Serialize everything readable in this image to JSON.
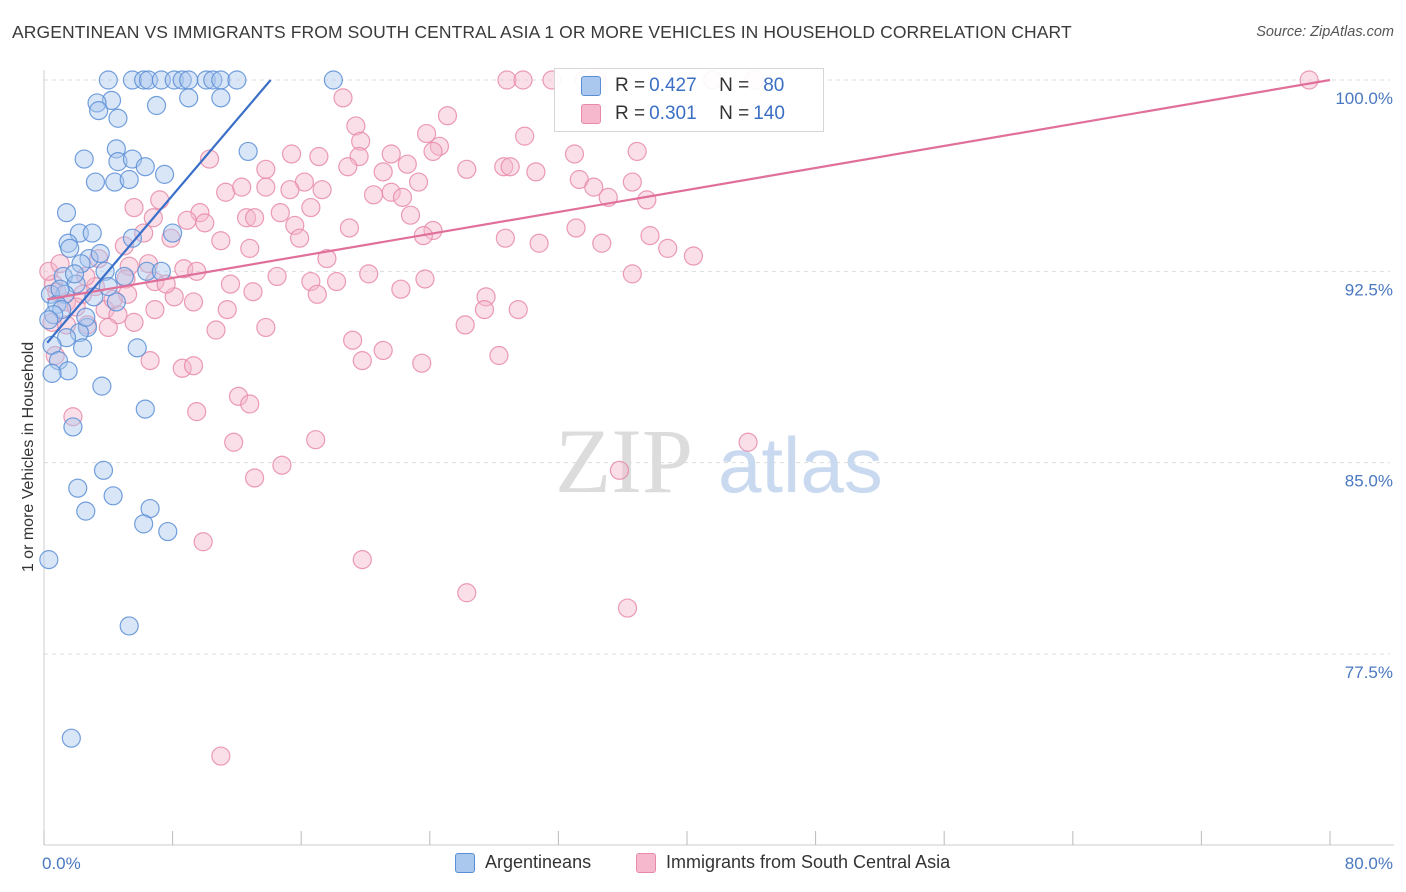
{
  "title": "ARGENTINEAN VS IMMIGRANTS FROM SOUTH CENTRAL ASIA 1 OR MORE VEHICLES IN HOUSEHOLD CORRELATION CHART",
  "source": "Source: ZipAtlas.com",
  "watermark": {
    "zip": "ZIP",
    "atlas": "atlas"
  },
  "colors": {
    "blue_fill": "#aac8ee",
    "blue_stroke": "#5b8ed6",
    "blue_line": "#3a6fc8",
    "pink_fill": "#f5b8cc",
    "pink_stroke": "#e88aa8",
    "pink_line": "#e0709a",
    "grid": "#dddddd",
    "tick_label": "#4a78c0"
  },
  "legend": {
    "rows": [
      {
        "r_label": "R = ",
        "r_value": "0.427",
        "n_label": "N = ",
        "n_value": "80"
      },
      {
        "r_label": "R = ",
        "r_value": "0.301",
        "n_label": "N = ",
        "n_value": "140"
      }
    ]
  },
  "chart_data": {
    "type": "scatter",
    "title": "ARGENTINEAN VS IMMIGRANTS FROM SOUTH CENTRAL ASIA 1 OR MORE VEHICLES IN HOUSEHOLD CORRELATION CHART",
    "xlabel": "",
    "ylabel": "1 or more Vehicles in Household",
    "xlim": [
      0,
      80
    ],
    "ylim": [
      71.5,
      101.5
    ],
    "x_tick_labels": [
      "0.0%",
      "80.0%"
    ],
    "y_ticks": [
      77.5,
      85.0,
      92.5,
      100.0
    ],
    "y_tick_labels": [
      "77.5%",
      "85.0%",
      "92.5%",
      "100.0%"
    ],
    "grid": true,
    "legend_position": "top-center",
    "series": [
      {
        "name": "Argentineans",
        "r": 0.427,
        "n": 80,
        "trend": {
          "x": [
            0.2,
            14.1
          ],
          "y": [
            89.7,
            100.0
          ]
        },
        "points": [
          [
            4.0,
            100.0
          ],
          [
            5.5,
            100.0
          ],
          [
            6.2,
            100.0
          ],
          [
            6.5,
            100.0
          ],
          [
            7.3,
            100.0
          ],
          [
            8.1,
            100.0
          ],
          [
            8.6,
            100.0
          ],
          [
            9.0,
            100.0
          ],
          [
            10.1,
            100.0
          ],
          [
            10.5,
            100.0
          ],
          [
            11.0,
            100.0
          ],
          [
            12.0,
            100.0
          ],
          [
            18.0,
            100.0
          ],
          [
            4.2,
            99.2
          ],
          [
            9.0,
            99.3
          ],
          [
            3.3,
            99.1
          ],
          [
            3.4,
            98.8
          ],
          [
            7.0,
            99.0
          ],
          [
            4.6,
            98.5
          ],
          [
            11.0,
            99.3
          ],
          [
            4.5,
            97.3
          ],
          [
            2.5,
            96.9
          ],
          [
            4.6,
            96.8
          ],
          [
            5.5,
            96.9
          ],
          [
            6.3,
            96.6
          ],
          [
            7.5,
            96.3
          ],
          [
            12.7,
            97.2
          ],
          [
            3.2,
            96.0
          ],
          [
            4.4,
            96.0
          ],
          [
            5.3,
            96.1
          ],
          [
            1.4,
            94.8
          ],
          [
            2.2,
            94.0
          ],
          [
            3.0,
            94.0
          ],
          [
            8.0,
            94.0
          ],
          [
            5.5,
            93.8
          ],
          [
            1.5,
            93.6
          ],
          [
            1.6,
            93.4
          ],
          [
            2.8,
            93.0
          ],
          [
            3.8,
            92.5
          ],
          [
            5.0,
            92.3
          ],
          [
            6.4,
            92.5
          ],
          [
            7.3,
            92.5
          ],
          [
            1.2,
            92.3
          ],
          [
            2.0,
            92.0
          ],
          [
            1.3,
            91.6
          ],
          [
            3.1,
            91.5
          ],
          [
            4.5,
            91.3
          ],
          [
            0.4,
            91.6
          ],
          [
            0.8,
            91.2
          ],
          [
            1.1,
            91.0
          ],
          [
            0.6,
            90.8
          ],
          [
            0.3,
            90.6
          ],
          [
            2.7,
            90.3
          ],
          [
            2.2,
            90.1
          ],
          [
            1.4,
            89.9
          ],
          [
            0.5,
            89.6
          ],
          [
            2.4,
            89.5
          ],
          [
            5.8,
            89.5
          ],
          [
            0.9,
            89.0
          ],
          [
            1.5,
            88.6
          ],
          [
            0.5,
            88.5
          ],
          [
            3.6,
            88.0
          ],
          [
            6.3,
            87.1
          ],
          [
            1.8,
            86.4
          ],
          [
            3.7,
            84.7
          ],
          [
            2.1,
            84.0
          ],
          [
            4.3,
            83.7
          ],
          [
            2.6,
            83.1
          ],
          [
            6.6,
            83.2
          ],
          [
            6.2,
            82.6
          ],
          [
            7.7,
            82.3
          ],
          [
            0.3,
            81.2
          ],
          [
            5.3,
            78.6
          ],
          [
            1.7,
            74.2
          ],
          [
            2.3,
            92.8
          ],
          [
            3.5,
            93.2
          ],
          [
            1.9,
            92.4
          ],
          [
            4.0,
            91.9
          ],
          [
            2.6,
            90.7
          ],
          [
            1.0,
            91.8
          ]
        ]
      },
      {
        "name": "Immigrants from South Central Asia",
        "r": 0.301,
        "n": 140,
        "trend": {
          "x": [
            0.2,
            80.0
          ],
          "y": [
            91.4,
            100.0
          ]
        },
        "points": [
          [
            28.8,
            100.0
          ],
          [
            29.8,
            100.0
          ],
          [
            31.6,
            100.0
          ],
          [
            33.6,
            100.0
          ],
          [
            34.4,
            100.0
          ],
          [
            41.6,
            100.0
          ],
          [
            78.7,
            100.0
          ],
          [
            18.6,
            99.3
          ],
          [
            25.1,
            98.6
          ],
          [
            19.4,
            98.2
          ],
          [
            23.8,
            97.9
          ],
          [
            24.6,
            97.4
          ],
          [
            29.9,
            97.8
          ],
          [
            19.7,
            97.6
          ],
          [
            24.2,
            97.2
          ],
          [
            28.6,
            96.6
          ],
          [
            33.0,
            97.1
          ],
          [
            36.9,
            97.2
          ],
          [
            15.4,
            97.1
          ],
          [
            17.1,
            97.0
          ],
          [
            19.6,
            97.0
          ],
          [
            21.6,
            97.1
          ],
          [
            13.8,
            96.5
          ],
          [
            18.9,
            96.6
          ],
          [
            22.6,
            96.7
          ],
          [
            26.3,
            96.5
          ],
          [
            29.0,
            96.6
          ],
          [
            21.1,
            96.4
          ],
          [
            10.3,
            96.9
          ],
          [
            16.2,
            96.0
          ],
          [
            23.3,
            96.0
          ],
          [
            30.6,
            96.4
          ],
          [
            33.3,
            96.1
          ],
          [
            34.2,
            95.8
          ],
          [
            36.6,
            96.0
          ],
          [
            11.3,
            95.6
          ],
          [
            12.3,
            95.8
          ],
          [
            13.8,
            95.8
          ],
          [
            15.3,
            95.7
          ],
          [
            17.3,
            95.7
          ],
          [
            20.5,
            95.5
          ],
          [
            21.6,
            95.6
          ],
          [
            22.3,
            95.4
          ],
          [
            35.1,
            95.4
          ],
          [
            37.5,
            95.3
          ],
          [
            7.2,
            95.3
          ],
          [
            5.6,
            95.0
          ],
          [
            9.7,
            94.8
          ],
          [
            12.6,
            94.6
          ],
          [
            14.7,
            94.8
          ],
          [
            16.6,
            95.0
          ],
          [
            22.8,
            94.7
          ],
          [
            6.8,
            94.6
          ],
          [
            8.9,
            94.5
          ],
          [
            10.0,
            94.4
          ],
          [
            13.1,
            94.6
          ],
          [
            15.6,
            94.3
          ],
          [
            19.0,
            94.2
          ],
          [
            24.2,
            94.1
          ],
          [
            33.1,
            94.2
          ],
          [
            6.2,
            94.0
          ],
          [
            7.9,
            93.8
          ],
          [
            11.0,
            93.7
          ],
          [
            23.6,
            93.9
          ],
          [
            37.7,
            93.9
          ],
          [
            38.8,
            93.4
          ],
          [
            5.0,
            93.5
          ],
          [
            12.8,
            93.4
          ],
          [
            17.6,
            93.0
          ],
          [
            28.7,
            93.8
          ],
          [
            40.4,
            93.1
          ],
          [
            3.4,
            93.0
          ],
          [
            5.3,
            92.7
          ],
          [
            6.5,
            92.8
          ],
          [
            8.7,
            92.6
          ],
          [
            14.5,
            92.3
          ],
          [
            16.6,
            92.1
          ],
          [
            20.2,
            92.4
          ],
          [
            23.7,
            92.2
          ],
          [
            36.6,
            92.4
          ],
          [
            5.1,
            92.2
          ],
          [
            6.9,
            92.1
          ],
          [
            11.6,
            92.0
          ],
          [
            3.2,
            91.9
          ],
          [
            2.4,
            91.6
          ],
          [
            5.2,
            91.6
          ],
          [
            8.1,
            91.5
          ],
          [
            13.0,
            91.7
          ],
          [
            17.0,
            91.6
          ],
          [
            22.2,
            91.8
          ],
          [
            27.5,
            91.5
          ],
          [
            0.6,
            92.0
          ],
          [
            1.4,
            91.3
          ],
          [
            2.0,
            91.1
          ],
          [
            3.8,
            91.0
          ],
          [
            4.6,
            90.8
          ],
          [
            6.9,
            91.0
          ],
          [
            9.3,
            91.3
          ],
          [
            11.4,
            91.0
          ],
          [
            27.4,
            91.0
          ],
          [
            29.5,
            91.0
          ],
          [
            0.5,
            90.5
          ],
          [
            1.4,
            90.4
          ],
          [
            2.7,
            90.4
          ],
          [
            4.0,
            90.3
          ],
          [
            5.6,
            90.5
          ],
          [
            10.7,
            90.2
          ],
          [
            13.8,
            90.3
          ],
          [
            26.2,
            90.4
          ],
          [
            19.2,
            89.8
          ],
          [
            21.1,
            89.4
          ],
          [
            28.3,
            89.2
          ],
          [
            0.7,
            89.2
          ],
          [
            6.6,
            89.0
          ],
          [
            8.6,
            88.7
          ],
          [
            9.3,
            88.8
          ],
          [
            19.8,
            89.0
          ],
          [
            23.5,
            88.9
          ],
          [
            12.1,
            87.6
          ],
          [
            12.8,
            87.3
          ],
          [
            9.5,
            87.0
          ],
          [
            1.8,
            86.8
          ],
          [
            11.8,
            85.8
          ],
          [
            16.9,
            85.9
          ],
          [
            43.8,
            85.8
          ],
          [
            13.1,
            84.4
          ],
          [
            14.8,
            84.9
          ],
          [
            35.8,
            84.7
          ],
          [
            9.9,
            81.9
          ],
          [
            19.8,
            81.2
          ],
          [
            26.3,
            79.9
          ],
          [
            36.3,
            79.3
          ],
          [
            11.0,
            73.5
          ],
          [
            44.2,
            100.0
          ],
          [
            0.3,
            92.5
          ],
          [
            1.0,
            92.8
          ],
          [
            0.8,
            91.7
          ],
          [
            2.6,
            92.3
          ],
          [
            4.3,
            91.4
          ],
          [
            7.6,
            92.0
          ],
          [
            9.5,
            92.5
          ],
          [
            15.9,
            93.8
          ],
          [
            30.8,
            93.6
          ],
          [
            34.7,
            93.6
          ],
          [
            18.2,
            92.1
          ]
        ]
      }
    ]
  },
  "bottom_legend": [
    {
      "label": "Argentineans"
    },
    {
      "label": "Immigrants from South Central Asia"
    }
  ]
}
